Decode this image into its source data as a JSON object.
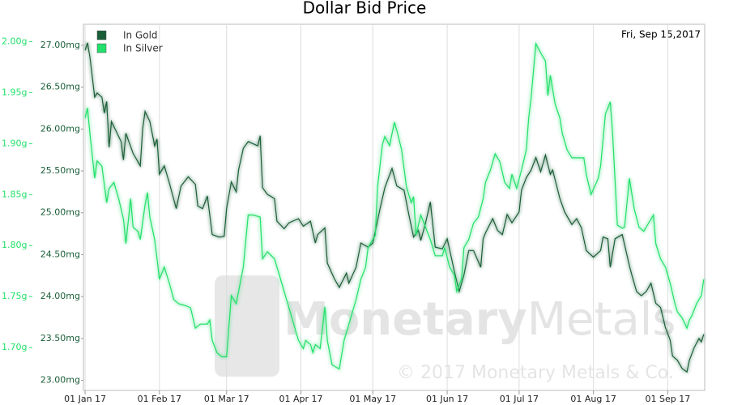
{
  "chart_data": {
    "type": "line",
    "title": "Dollar Bid Price",
    "annotation": "Fri, Sep 15,2017",
    "watermark_brand": [
      "Monetary",
      "Metals"
    ],
    "watermark_copyright": "© 2017 Monetary Metals & Co.",
    "grid": "x",
    "legend": "top-left",
    "xlim": [
      -0.7,
      258.4
    ],
    "xticks": [
      {
        "value": 0,
        "label": "01 Jan 17"
      },
      {
        "value": 31,
        "label": "01 Feb 17"
      },
      {
        "value": 59,
        "label": "01 Mar 17"
      },
      {
        "value": 90,
        "label": "01 Apr 17"
      },
      {
        "value": 120,
        "label": "01 May 17"
      },
      {
        "value": 151,
        "label": "01 Jun 17"
      },
      {
        "value": 181,
        "label": "01 Jul 17"
      },
      {
        "value": 212,
        "label": "01 Aug 17"
      },
      {
        "value": 243,
        "label": "01 Sep 17"
      }
    ],
    "ylim": [
      22.88,
      27.25
    ],
    "yticks": [
      {
        "value": 23,
        "label": "23.00mg"
      },
      {
        "value": 23.5,
        "label": "23.50mg"
      },
      {
        "value": 24,
        "label": "24.00mg"
      },
      {
        "value": 24.5,
        "label": "24.50mg"
      },
      {
        "value": 25,
        "label": "25.00mg"
      },
      {
        "value": 25.5,
        "label": "25.50mg"
      },
      {
        "value": 26,
        "label": "26.00mg"
      },
      {
        "value": 26.5,
        "label": "26.50mg"
      },
      {
        "value": 27,
        "label": "27.00mg"
      }
    ],
    "y2lim": [
      1.658,
      2.017
    ],
    "y2ticks": [
      {
        "value": 1.7,
        "label": "1.70g"
      },
      {
        "value": 1.75,
        "label": "1.75g"
      },
      {
        "value": 1.8,
        "label": "1.80g"
      },
      {
        "value": 1.85,
        "label": "1.85g"
      },
      {
        "value": 1.9,
        "label": "1.90g"
      },
      {
        "value": 1.95,
        "label": "1.95g"
      },
      {
        "value": 2.0,
        "label": "2.00g"
      }
    ],
    "series": [
      {
        "name": "In Gold",
        "color": "#1a5e38",
        "x": [
          0,
          1,
          2,
          4,
          5,
          7,
          8,
          9,
          10,
          11,
          15,
          16,
          17,
          20,
          23,
          24,
          25,
          27,
          29,
          30,
          31,
          33,
          35,
          38,
          40,
          43,
          46,
          47,
          49,
          51,
          53,
          56,
          58,
          59,
          61,
          63,
          64,
          66,
          68,
          72,
          73,
          74,
          76,
          79,
          80,
          83,
          85,
          89,
          91,
          94,
          96,
          97,
          100,
          101,
          104,
          106,
          109,
          110,
          113,
          115,
          118,
          120,
          123,
          125,
          128,
          130,
          133,
          135,
          137,
          139,
          140,
          142,
          144,
          146,
          149,
          151,
          154,
          156,
          158,
          160,
          162,
          165,
          166,
          167,
          170,
          172,
          174,
          176,
          178,
          181,
          182,
          184,
          186,
          188,
          190,
          192,
          194,
          195,
          198,
          200,
          203,
          205,
          207,
          209,
          212,
          215,
          216,
          218,
          219,
          221,
          224,
          227,
          228,
          230,
          232,
          234,
          236,
          238,
          240,
          242,
          244,
          245,
          247,
          249,
          251,
          252,
          254,
          256,
          257,
          258
        ],
        "values": [
          26.94,
          27.03,
          26.86,
          26.38,
          26.43,
          26.38,
          26.19,
          26.33,
          25.78,
          26.09,
          25.85,
          25.63,
          25.95,
          25.71,
          25.56,
          26.0,
          26.21,
          26.09,
          25.8,
          25.88,
          25.46,
          25.56,
          25.37,
          25.05,
          25.32,
          25.43,
          25.34,
          25.08,
          25.05,
          25.2,
          24.74,
          24.71,
          24.72,
          25.05,
          25.37,
          25.25,
          25.51,
          25.77,
          25.85,
          25.8,
          25.92,
          25.3,
          25.22,
          25.17,
          24.9,
          24.81,
          24.88,
          24.93,
          24.84,
          24.9,
          24.64,
          24.74,
          24.82,
          24.4,
          24.21,
          24.11,
          24.28,
          24.16,
          24.35,
          24.64,
          24.59,
          24.64,
          25.05,
          25.3,
          25.53,
          25.32,
          25.27,
          24.98,
          24.71,
          24.79,
          24.67,
          24.88,
          25.13,
          24.59,
          24.57,
          24.69,
          24.3,
          24.06,
          24.26,
          24.55,
          24.55,
          24.35,
          24.69,
          24.76,
          24.93,
          24.79,
          24.74,
          24.98,
          24.88,
          25.01,
          25.27,
          25.42,
          25.51,
          25.66,
          25.49,
          25.69,
          25.46,
          25.51,
          25.17,
          25.01,
          24.86,
          24.93,
          24.82,
          24.55,
          24.47,
          24.55,
          24.71,
          24.69,
          24.35,
          24.69,
          24.74,
          24.37,
          24.26,
          24.06,
          24.01,
          24.06,
          24.16,
          23.92,
          23.87,
          23.63,
          23.48,
          23.29,
          23.24,
          23.14,
          23.1,
          23.24,
          23.39,
          23.5,
          23.46,
          23.55
        ]
      },
      {
        "name": "In Silver",
        "color": "#22e06a",
        "axis": "y2",
        "x": [
          0,
          1,
          2,
          4,
          5,
          7,
          9,
          10,
          12,
          14,
          16,
          17,
          19,
          20,
          22,
          23,
          25,
          26,
          27,
          29,
          30,
          31,
          33,
          35,
          37,
          39,
          42,
          44,
          46,
          48,
          51,
          52,
          53,
          55,
          57,
          59,
          61,
          63,
          66,
          68,
          70,
          73,
          74,
          76,
          79,
          81,
          83,
          86,
          89,
          91,
          92,
          94,
          95,
          96,
          98,
          100,
          101,
          103,
          106,
          108,
          110,
          113,
          115,
          117,
          118,
          121,
          122,
          124,
          125,
          127,
          129,
          130,
          132,
          134,
          136,
          137,
          138,
          140,
          142,
          144,
          146,
          149,
          150,
          152,
          154,
          155,
          157,
          158,
          160,
          162,
          164,
          166,
          167,
          169,
          171,
          173,
          175,
          177,
          178,
          180,
          182,
          184,
          185,
          186,
          188,
          190,
          192,
          193,
          194,
          196,
          198,
          199,
          201,
          203,
          205,
          208,
          209,
          211,
          214,
          215,
          217,
          219,
          220,
          222,
          224,
          225,
          227,
          229,
          231,
          233,
          235,
          237,
          238,
          240,
          242,
          244,
          246,
          247,
          249,
          251,
          252,
          253,
          255,
          257,
          258
        ],
        "values": [
          1.925,
          1.935,
          1.91,
          1.866,
          1.883,
          1.878,
          1.842,
          1.856,
          1.862,
          1.846,
          1.826,
          1.802,
          1.846,
          1.818,
          1.814,
          1.806,
          1.84,
          1.852,
          1.828,
          1.806,
          1.787,
          1.767,
          1.779,
          1.764,
          1.747,
          1.743,
          1.741,
          1.739,
          1.719,
          1.723,
          1.723,
          1.727,
          1.707,
          1.695,
          1.691,
          1.691,
          1.751,
          1.743,
          1.779,
          1.83,
          1.83,
          1.828,
          1.787,
          1.794,
          1.787,
          1.771,
          1.755,
          1.731,
          1.707,
          1.699,
          1.707,
          1.703,
          1.695,
          1.703,
          1.699,
          1.74,
          1.707,
          1.683,
          1.679,
          1.707,
          1.723,
          1.747,
          1.767,
          1.779,
          1.798,
          1.81,
          1.858,
          1.899,
          1.907,
          1.898,
          1.921,
          1.913,
          1.894,
          1.858,
          1.842,
          1.848,
          1.81,
          1.83,
          1.818,
          1.806,
          1.79,
          1.79,
          1.798,
          1.779,
          1.771,
          1.755,
          1.767,
          1.798,
          1.806,
          1.822,
          1.828,
          1.846,
          1.862,
          1.874,
          1.89,
          1.882,
          1.862,
          1.856,
          1.87,
          1.856,
          1.874,
          1.894,
          1.925,
          1.945,
          1.998,
          1.989,
          1.981,
          1.947,
          1.967,
          1.939,
          1.925,
          1.91,
          1.894,
          1.886,
          1.886,
          1.886,
          1.87,
          1.85,
          1.866,
          1.878,
          1.929,
          1.941,
          1.91,
          1.82,
          1.817,
          1.818,
          1.866,
          1.836,
          1.818,
          1.814,
          1.822,
          1.83,
          1.802,
          1.787,
          1.779,
          1.763,
          1.743,
          1.735,
          1.729,
          1.719,
          1.727,
          1.731,
          1.743,
          1.751,
          1.767
        ]
      }
    ]
  }
}
